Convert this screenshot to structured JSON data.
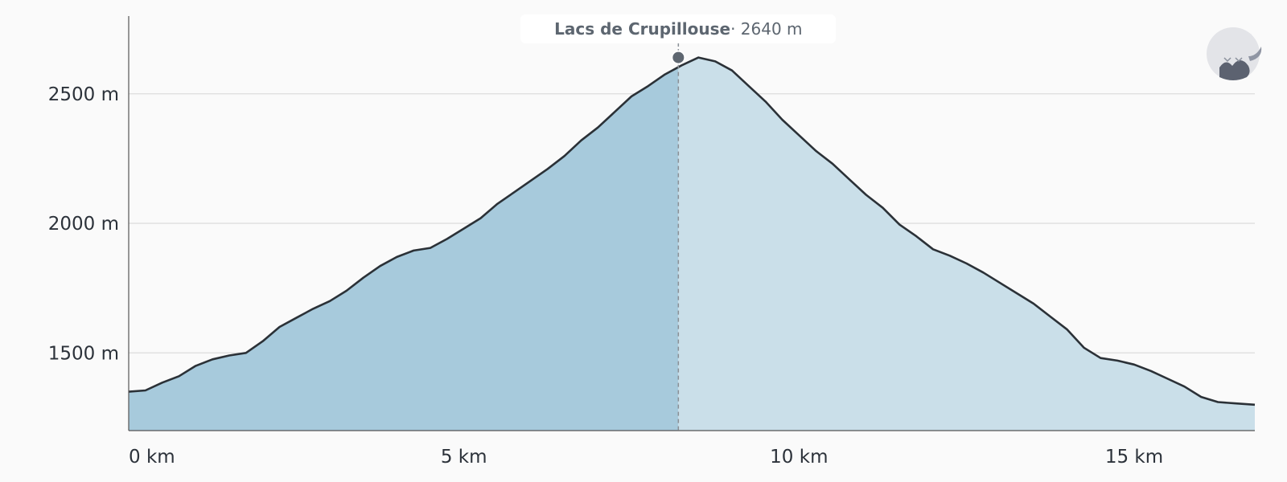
{
  "chart_data": {
    "type": "area",
    "xlabel": "",
    "ylabel": "",
    "x_unit": "km",
    "y_unit": "m",
    "xlim": [
      0,
      16.8
    ],
    "ylim": [
      1200,
      2800
    ],
    "x_ticks": [
      0,
      5,
      10,
      15
    ],
    "y_ticks": [
      1500,
      2000,
      2500
    ],
    "x_tick_labels": [
      "0 km",
      "5 km",
      "10 km",
      "15 km"
    ],
    "y_tick_labels": [
      "1500 m",
      "2000 m",
      "2500 m"
    ],
    "grid": "horizontal",
    "series": [
      {
        "x": [
          0,
          0.25,
          0.5,
          0.75,
          1.0,
          1.25,
          1.5,
          1.75,
          2.0,
          2.25,
          2.5,
          2.75,
          3.0,
          3.25,
          3.5,
          3.75,
          4.0,
          4.25,
          4.5,
          4.75,
          5.0,
          5.25,
          5.5,
          5.75,
          6.0,
          6.25,
          6.5,
          6.75,
          7.0,
          7.25,
          7.5,
          7.75,
          8.0,
          8.25,
          8.5,
          8.75,
          9.0,
          9.25,
          9.5,
          9.75,
          10.0,
          10.25,
          10.5,
          10.75,
          11.0,
          11.25,
          11.5,
          11.75,
          12.0,
          12.25,
          12.5,
          12.75,
          13.0,
          13.25,
          13.5,
          13.75,
          14.0,
          14.25,
          14.5,
          14.75,
          15.0,
          15.25,
          15.5,
          15.75,
          16.0,
          16.25,
          16.5,
          16.8
        ],
        "y": [
          1350,
          1355,
          1385,
          1410,
          1450,
          1475,
          1490,
          1500,
          1545,
          1600,
          1635,
          1670,
          1700,
          1740,
          1790,
          1835,
          1870,
          1895,
          1905,
          1940,
          1980,
          2020,
          2075,
          2120,
          2165,
          2210,
          2260,
          2320,
          2370,
          2430,
          2490,
          2530,
          2575,
          2610,
          2640,
          2625,
          2590,
          2530,
          2470,
          2400,
          2340,
          2280,
          2230,
          2170,
          2110,
          2060,
          1995,
          1950,
          1900,
          1875,
          1845,
          1810,
          1770,
          1730,
          1690,
          1640,
          1590,
          1520,
          1480,
          1470,
          1455,
          1430,
          1400,
          1370,
          1330,
          1310,
          1305,
          1300
        ]
      }
    ],
    "highlight": {
      "x": 8.2,
      "y": 2640,
      "name": "Lacs de Crupillouse",
      "value_label": "· 2640 m"
    },
    "colors": {
      "area_left": "#a7cadc",
      "area_right": "#cadfe9",
      "line": "#2b3137",
      "grid": "#dcdcdc",
      "marker": "#5e6670"
    }
  },
  "logo": {
    "icon": "fox-mountain-icon"
  }
}
